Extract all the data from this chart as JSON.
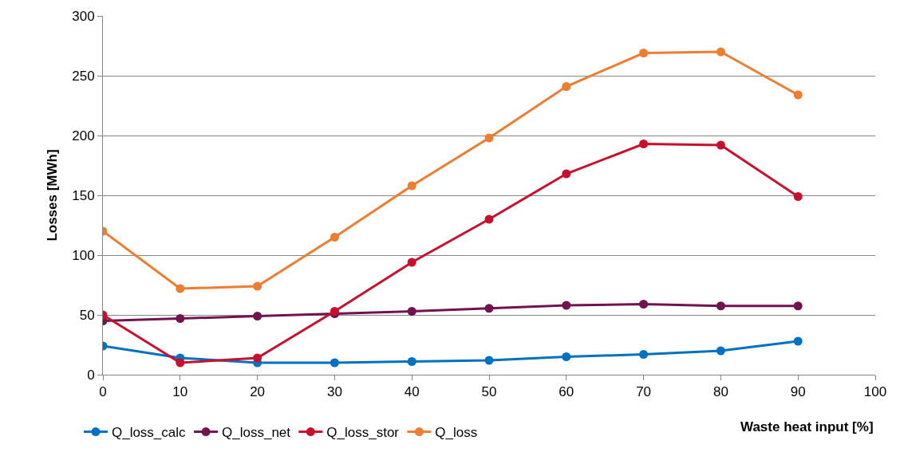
{
  "chart_data": {
    "type": "line",
    "xlabel": "Waste heat input [%]",
    "ylabel": "Losses [MWh]",
    "x": [
      0,
      10,
      20,
      30,
      40,
      50,
      60,
      70,
      80,
      90
    ],
    "series": [
      {
        "name": "Q_loss_calc",
        "color": "#0070c0",
        "values": [
          24,
          14,
          10,
          10,
          11,
          12,
          15,
          17,
          20,
          28
        ]
      },
      {
        "name": "Q_loss_net",
        "color": "#70134f",
        "values": [
          45,
          47,
          49,
          51,
          53,
          55.5,
          58,
          59,
          57.5,
          57.5
        ]
      },
      {
        "name": "Q_loss_stor",
        "color": "#c8102e",
        "values": [
          50,
          10,
          14,
          53,
          94,
          130,
          168,
          193,
          192,
          149
        ]
      },
      {
        "name": "Q_loss",
        "color": "#ed7d31",
        "values": [
          120,
          72,
          74,
          115,
          158,
          198,
          241,
          269,
          270,
          234
        ]
      }
    ],
    "xlim": [
      0,
      100
    ],
    "xticks": [
      0,
      10,
      20,
      30,
      40,
      50,
      60,
      70,
      80,
      90,
      100
    ],
    "ylim": [
      0,
      300
    ],
    "yticks": [
      0,
      50,
      100,
      150,
      200,
      250,
      300
    ],
    "grid": "y",
    "legend": "bottom",
    "marker": "circle",
    "line_style": "solid"
  }
}
